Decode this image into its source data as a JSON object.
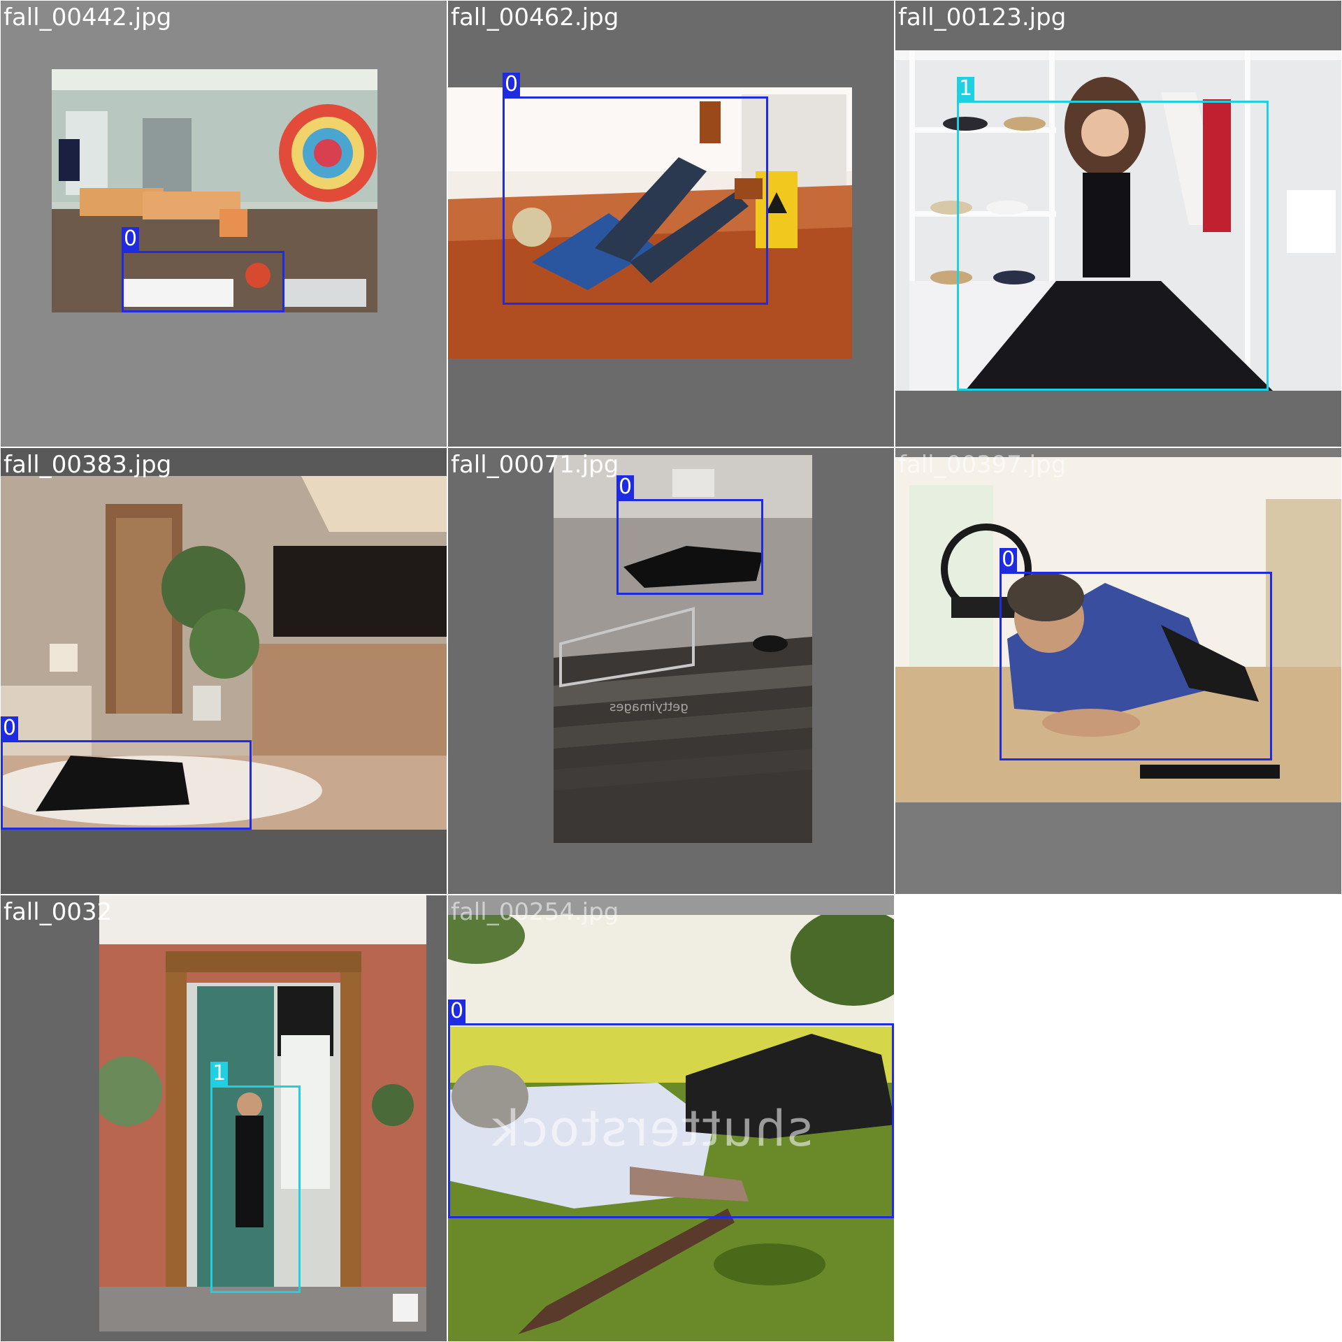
{
  "classes": {
    "0": "#1f2be0",
    "1": "#1ed0e0"
  },
  "tiles": [
    {
      "filename": "fall_00442.jpg",
      "background": "#8a8a8a",
      "detections": [
        {
          "class_label": "0"
        }
      ]
    },
    {
      "filename": "fall_00462.jpg",
      "background": "#6b6b6b",
      "detections": [
        {
          "class_label": "0"
        }
      ]
    },
    {
      "filename": "fall_00123.jpg",
      "background": "#6b6b6b",
      "detections": [
        {
          "class_label": "1"
        }
      ]
    },
    {
      "filename": "fall_00383.jpg",
      "background": "#595959",
      "detections": [
        {
          "class_label": "0"
        }
      ]
    },
    {
      "filename": "fall_00071.jpg",
      "background": "#6b6b6b",
      "detections": [
        {
          "class_label": "0"
        }
      ],
      "watermark": "gettyimages"
    },
    {
      "filename": "fall_00397.jpg",
      "background": "#7a7a7a",
      "detections": [
        {
          "class_label": "0"
        }
      ]
    },
    {
      "filename": "fall_0032",
      "background": "#666666",
      "detections": [
        {
          "class_label": "1"
        }
      ]
    },
    {
      "filename": "fall_00254.jpg",
      "background": "#999999",
      "detections": [
        {
          "class_label": "0"
        }
      ],
      "watermark": "shutterstock"
    }
  ]
}
